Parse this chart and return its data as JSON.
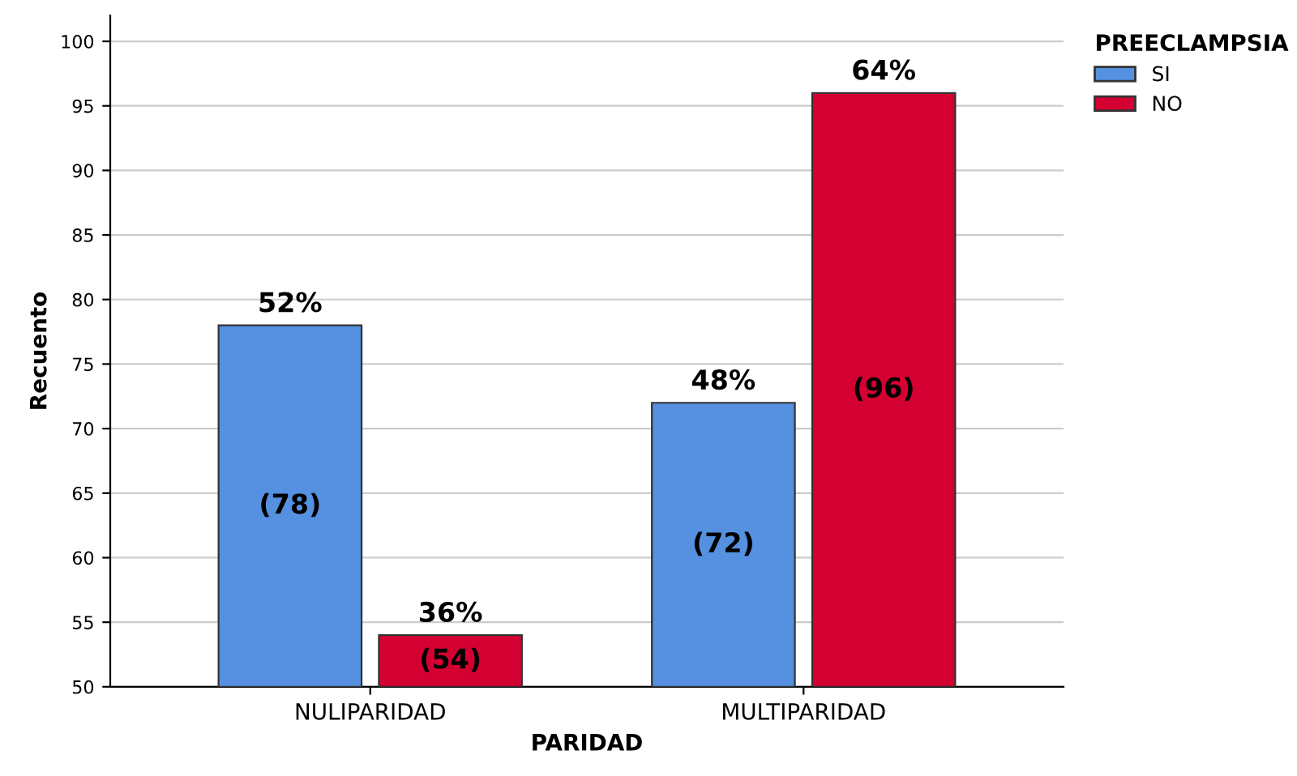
{
  "chart_data": {
    "type": "bar",
    "xlabel": "PARIDAD",
    "ylabel": "Recuento",
    "legend_title": "PREECLAMPSIA",
    "legend": "top right",
    "grid": "y",
    "categories": [
      "NULIPARIDAD",
      "MULTIPARIDAD"
    ],
    "series": [
      {
        "name": "SI",
        "color": "#5591e0",
        "values": [
          78,
          72
        ],
        "value_labels": [
          "(78)",
          "(72)"
        ]
      },
      {
        "name": "NO",
        "color": "#d50032",
        "values": [
          54,
          96
        ],
        "value_labels": [
          "(54)",
          "(96)"
        ]
      }
    ],
    "annotations": [
      "52%",
      "36%",
      "48%",
      "64%"
    ],
    "ylim": [
      50,
      102
    ],
    "yticks": [
      50,
      55,
      60,
      65,
      70,
      75,
      80,
      85,
      90,
      95,
      100
    ]
  }
}
